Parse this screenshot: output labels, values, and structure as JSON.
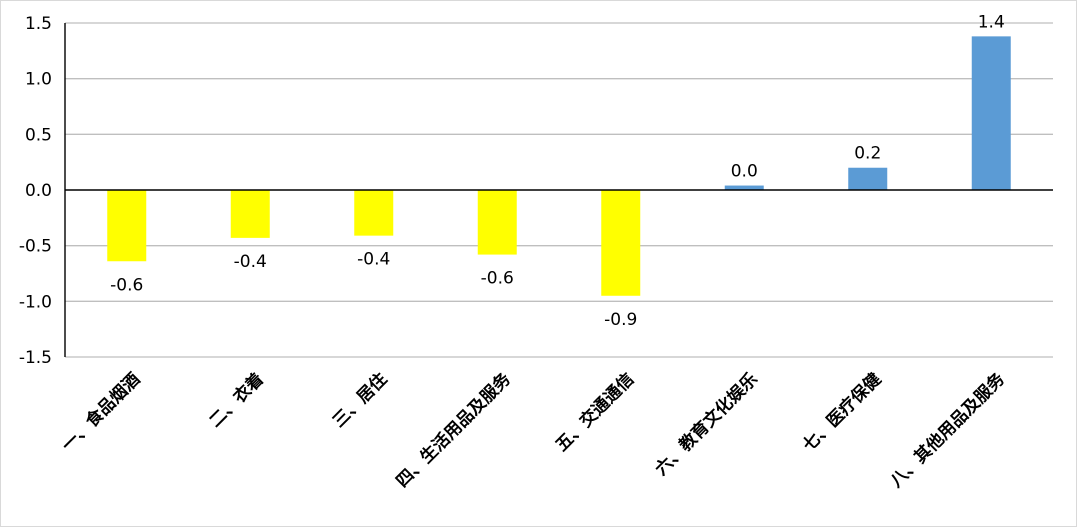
{
  "chart_data": {
    "type": "bar",
    "title": "",
    "xlabel": "",
    "ylabel": "",
    "ylim": [
      -1.5,
      1.5
    ],
    "yticks": [
      1.5,
      1.0,
      0.5,
      0.0,
      -0.5,
      -1.0,
      -1.5
    ],
    "ytick_labels": [
      "1.5",
      "1.0",
      "0.5",
      "0.0",
      "-0.5",
      "-1.0",
      "-1.5"
    ],
    "grid": true,
    "categories": [
      "一、食品烟酒",
      "二、衣着",
      "三、居住",
      "四、生活用品及服务",
      "五、交通通信",
      "六、教育文化娱乐",
      "七、医疗保健",
      "八、其他用品及服务"
    ],
    "values": [
      -0.64,
      -0.43,
      -0.41,
      -0.58,
      -0.95,
      0.04,
      0.2,
      1.38
    ],
    "data_labels": [
      "-0.6",
      "-0.4",
      "-0.4",
      "-0.6",
      "-0.9",
      "0.0",
      "0.2",
      "1.4"
    ],
    "colors": {
      "negative": "#ffff00",
      "positive": "#5b9bd5",
      "grid": "#bfbfbf",
      "axis": "#000000"
    }
  }
}
